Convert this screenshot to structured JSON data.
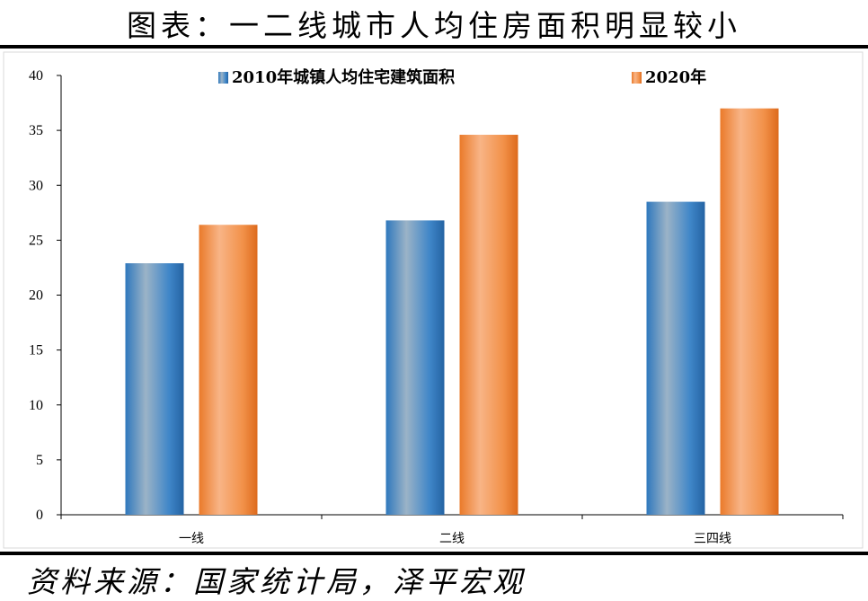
{
  "header": {
    "title": "图表：一二线城市人均住房面积明显较小"
  },
  "footer": {
    "source": "资料来源：国家统计局，泽平宏观"
  },
  "chart_data": {
    "type": "bar",
    "title": "",
    "xlabel": "",
    "ylabel": "",
    "categories": [
      "一线",
      "二线",
      "三四线"
    ],
    "ylim": [
      0,
      40
    ],
    "yticks": [
      0,
      5,
      10,
      15,
      20,
      25,
      30,
      35,
      40
    ],
    "legend_position": "top",
    "grid": false,
    "series": [
      {
        "name": "2010年城镇人均住宅建筑面积",
        "values": [
          22.9,
          26.8,
          28.5
        ],
        "color": "#2e75b6"
      },
      {
        "name": "2020年",
        "values": [
          26.4,
          34.6,
          37.0
        ],
        "color": "#ed7d31"
      }
    ]
  }
}
